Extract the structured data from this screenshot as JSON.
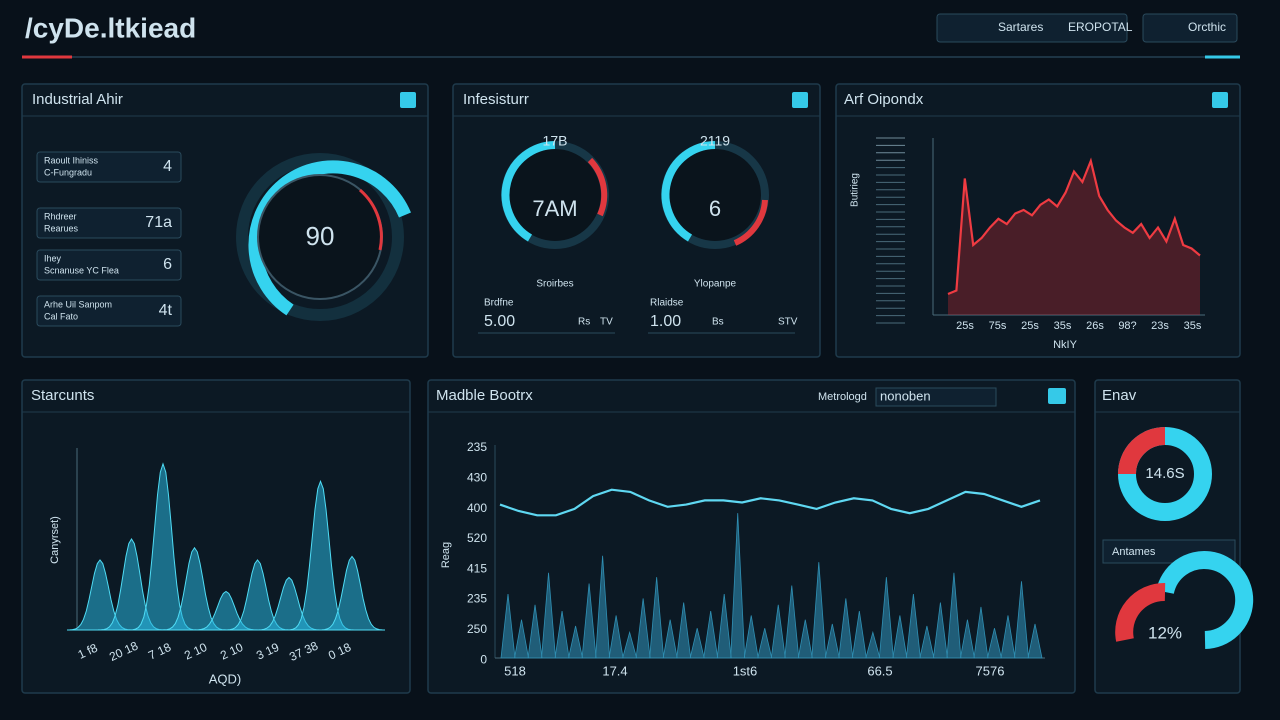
{
  "header": {
    "title": "/cyDe.ltkiead",
    "actions": [
      "Sartares",
      "EROPOTAL",
      "Orcthic"
    ]
  },
  "industrial": {
    "title": "Industrial Ahir",
    "metrics": [
      {
        "label": "Raoult Ihiniss",
        "sub": "C-Fungradu",
        "value": "4"
      },
      {
        "label": "Rhdreer",
        "sub": "Rearues",
        "value": "71a"
      },
      {
        "label": "Ihey",
        "sub": "Scnanuse YC Flea",
        "value": "6"
      },
      {
        "label": "Arhe Uil Sanpom",
        "sub": "Cal Fato",
        "value": "4t"
      }
    ],
    "gauge": "90"
  },
  "infra": {
    "title": "Infesisturr",
    "gauges": [
      {
        "top": "17B",
        "center": "7AM",
        "bottom": "Sroirbes"
      },
      {
        "top": "2119",
        "center": "6",
        "bottom": "Ylopanpe"
      }
    ],
    "readouts": [
      {
        "label": "Brdfne",
        "value": "5.00",
        "unit": "Rs",
        "unit2": "TV"
      },
      {
        "label": "Rlaidse",
        "value": "1.00",
        "unit": "Bs",
        "unit2": "STV"
      }
    ]
  },
  "response": {
    "title": "Arf Oipondx",
    "y_label": "Butirieg",
    "x_label": "NkIY",
    "x_labels": [
      "25s",
      "75s",
      "25s",
      "35s",
      "26s",
      "98?",
      "23s",
      "35s"
    ],
    "ylim": [
      0,
      100
    ],
    "values": [
      12,
      14,
      78,
      40,
      44,
      50,
      55,
      52,
      58,
      60,
      57,
      63,
      66,
      62,
      70,
      82,
      76,
      88,
      68,
      60,
      54,
      50,
      47,
      52,
      44,
      50,
      42,
      55,
      40,
      38,
      34
    ]
  },
  "counts": {
    "title": "Starcunts",
    "y_label": "Canyrset)",
    "x_label": "AQD)",
    "x_labels": [
      "1 f8",
      "20 18",
      "7 18",
      "2 10",
      "2 10",
      "3 19",
      "37 38",
      "0 18"
    ],
    "ylim": [
      0,
      100
    ],
    "values": [
      40,
      52,
      95,
      47,
      22,
      40,
      30,
      85,
      42
    ]
  },
  "matrix": {
    "title": "Madble Bootrx",
    "filter_label": "Metrologd",
    "filter_value": "nonoben",
    "y_label": "Reag",
    "y_labels": [
      "235",
      "430",
      "400",
      "520",
      "415",
      "235",
      "250",
      "0"
    ],
    "x_labels": [
      "518",
      "17.4",
      "1st6",
      "66.5",
      "7576"
    ],
    "ylim": [
      0,
      100
    ],
    "line": [
      72,
      69,
      67,
      67,
      70,
      76,
      79,
      78,
      74,
      71,
      72,
      74,
      74,
      73,
      75,
      74,
      72,
      70,
      73,
      75,
      74,
      70,
      68,
      70,
      74,
      78,
      77,
      74,
      71,
      74
    ],
    "bars": [
      30,
      18,
      25,
      40,
      22,
      15,
      35,
      48,
      20,
      12,
      28,
      38,
      18,
      26,
      14,
      22,
      30,
      68,
      20,
      14,
      25,
      34,
      18,
      45,
      16,
      28,
      22,
      12,
      38,
      20,
      30,
      15,
      26,
      40,
      18,
      24,
      14,
      20,
      36,
      16
    ]
  },
  "env": {
    "title": "Enav",
    "donut1": "14.6S",
    "divider": "Antames",
    "donut2": "12%"
  }
}
